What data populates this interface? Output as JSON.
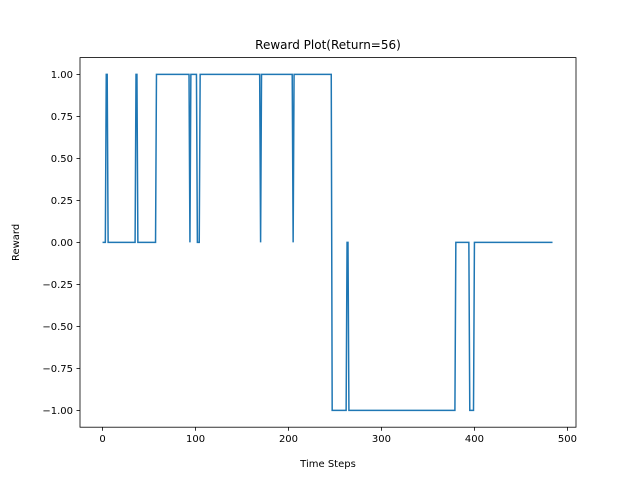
{
  "chart_data": {
    "type": "line",
    "title": "Reward Plot(Return=56)",
    "xlabel": "Time Steps",
    "ylabel": "Reward",
    "xlim": [
      -24.25,
      509.25
    ],
    "ylim": [
      -1.1,
      1.1
    ],
    "xticks": [
      0,
      100,
      200,
      300,
      400,
      500
    ],
    "yticks": [
      -1.0,
      -0.75,
      -0.5,
      -0.25,
      0.0,
      0.25,
      0.5,
      0.75,
      1.0
    ],
    "xtick_labels": [
      "0",
      "100",
      "200",
      "300",
      "400",
      "500"
    ],
    "ytick_labels": [
      "−1.00",
      "−0.75",
      "−0.50",
      "−0.25",
      "0.00",
      "0.25",
      "0.50",
      "0.75",
      "1.00"
    ],
    "grid": false,
    "series": [
      {
        "color": "#1f77b4",
        "line_style": "steps",
        "x": [
          0,
          3,
          4,
          5,
          6,
          7,
          8,
          35,
          36,
          37,
          38,
          40,
          41,
          57,
          58,
          59,
          93,
          94,
          95,
          96,
          97,
          101,
          102,
          104,
          105,
          169,
          170,
          171,
          204,
          205,
          206,
          246,
          247,
          262,
          263,
          264,
          265,
          379,
          380,
          394,
          395,
          399,
          400,
          484
        ],
        "y": [
          0,
          0,
          1,
          1,
          0,
          0,
          0,
          0,
          1,
          1,
          0,
          0,
          0,
          0,
          1,
          1,
          1,
          0,
          1,
          1,
          1,
          1,
          0,
          0,
          1,
          1,
          0,
          1,
          1,
          0,
          1,
          1,
          -1,
          -1,
          0,
          0,
          -1,
          -1,
          0,
          0,
          -1,
          -1,
          0,
          0
        ]
      }
    ]
  }
}
